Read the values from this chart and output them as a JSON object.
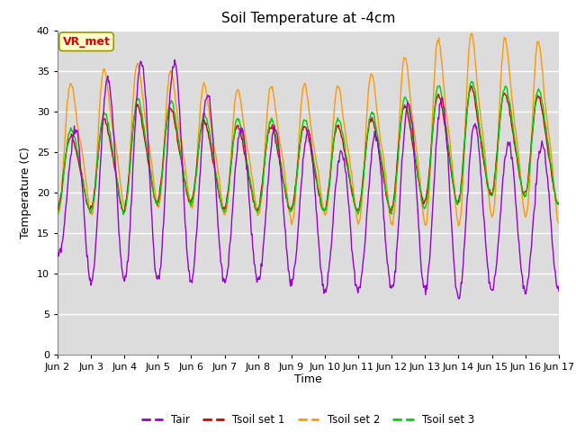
{
  "title": "Soil Temperature at -4cm",
  "xlabel": "Time",
  "ylabel": "Temperature (C)",
  "ylim": [
    0,
    40
  ],
  "yticks": [
    0,
    5,
    10,
    15,
    20,
    25,
    30,
    35,
    40
  ],
  "colors": {
    "Tair": "#9900cc",
    "Tsoil1": "#cc0000",
    "Tsoil2": "#ff9900",
    "Tsoil3": "#00cc00"
  },
  "legend_labels": [
    "Tair",
    "Tsoil set 1",
    "Tsoil set 2",
    "Tsoil set 3"
  ],
  "annotation_text": "VR_met",
  "annotation_color": "#cc0000",
  "annotation_bg": "#ffffcc",
  "axis_bg": "#dcdcdc",
  "n_days": 15,
  "hours_per_day": 24,
  "xtick_labels": [
    "Jun 2",
    "Jun 3",
    "Jun 4",
    "Jun 5",
    "Jun 6",
    "Jun 7",
    "Jun 8",
    "Jun 9",
    "Jun 10",
    "Jun 11Jun",
    "12Jun",
    "13Jun",
    "14Jun",
    "15Jun",
    "16Jun 17"
  ],
  "line_width": 1.0
}
